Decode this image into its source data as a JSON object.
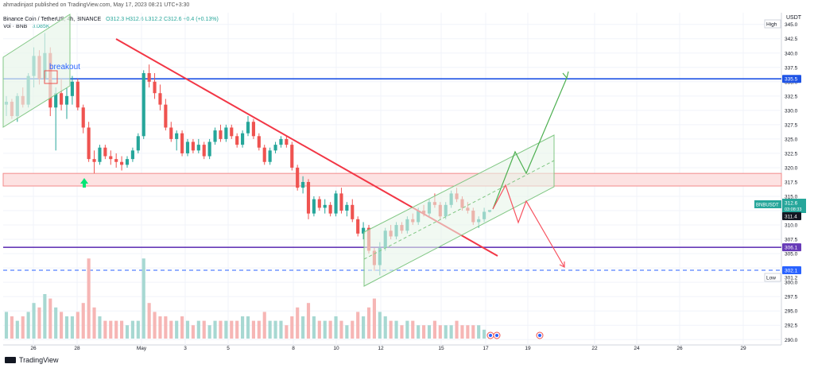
{
  "publisher_line": "ahmadinjast published on TradingView.com, May 17, 2023 08:21 UTC+3:30",
  "symbol_line": {
    "name": "Binance Coin / TetherUS, 4h, BINANCE",
    "ohlc": "O312.3  H312.6  L312.2  C312.6  +0.4 (+0.13%)"
  },
  "volume_line": {
    "label": "Vol · BNB",
    "value": "3.085K"
  },
  "footer_brand": "TradingView",
  "chart_data": {
    "type": "candlestick",
    "currency": "USDT",
    "ylim": [
      290.0,
      345.0
    ],
    "y_ticks": [
      "290.0",
      "292.5",
      "295.0",
      "297.5",
      "300.0",
      "302.5",
      "305.0",
      "307.5",
      "310.0",
      "312.5",
      "315.0",
      "317.5",
      "320.0",
      "322.5",
      "325.0",
      "327.5",
      "330.0",
      "332.5",
      "335.0",
      "337.5",
      "340.0",
      "342.5",
      "345.0"
    ],
    "x_ticks": [
      "26",
      "28",
      "May",
      "3",
      "5",
      "8",
      "10",
      "12",
      "15",
      "17",
      "19",
      "22",
      "24",
      "26",
      "29"
    ],
    "price_markers": [
      {
        "label": "High",
        "type": "tag"
      },
      {
        "label": "BNBUSDT",
        "value": "312.6",
        "sub": "03:08:33",
        "color": "#26a69a"
      },
      {
        "label": "",
        "value": "311.4",
        "color": "#131722"
      },
      {
        "label": "",
        "value": "335.5",
        "color": "#1e53e5"
      },
      {
        "label": "",
        "value": "306.1",
        "color": "#673ab7"
      },
      {
        "label": "",
        "value": "302.1",
        "color": "#2962ff"
      },
      {
        "label": "Low",
        "value": "301.2",
        "type": "tag"
      }
    ],
    "levels": [
      {
        "value": 335.5,
        "style": "solid",
        "color": "#1e53e5"
      },
      {
        "value": 306.1,
        "style": "solid",
        "color": "#673ab7"
      },
      {
        "value": 302.1,
        "style": "dashed",
        "color": "#2962ff"
      }
    ],
    "resistance_zone": {
      "from": 316.8,
      "to": 319.0,
      "color": "#f7a7a7"
    },
    "annotation": "breakout",
    "colors": {
      "up": "#26a69a",
      "down": "#ef5350",
      "trendline": "#f23645",
      "projection_up": "#4caf50",
      "projection_down": "#f7525f",
      "channel": "#4caf50"
    },
    "candles": [
      [
        331.0,
        332.5,
        329.0,
        331.5
      ],
      [
        331.5,
        332.0,
        328.5,
        329.0
      ],
      [
        329.0,
        333.0,
        328.0,
        332.5
      ],
      [
        332.5,
        334.0,
        330.5,
        331.0
      ],
      [
        331.0,
        336.5,
        330.5,
        336.0
      ],
      [
        336.0,
        341.0,
        334.0,
        339.5
      ],
      [
        339.5,
        340.5,
        334.5,
        335.5
      ],
      [
        335.5,
        343.5,
        335.0,
        340.0
      ],
      [
        340.0,
        341.0,
        329.0,
        330.5
      ],
      [
        330.5,
        334.0,
        323.0,
        333.0
      ],
      [
        333.0,
        335.5,
        330.0,
        331.0
      ],
      [
        331.0,
        334.0,
        328.5,
        332.5
      ],
      [
        332.5,
        336.0,
        331.0,
        335.0
      ],
      [
        335.0,
        335.5,
        330.0,
        330.5
      ],
      [
        330.5,
        331.0,
        326.0,
        327.0
      ],
      [
        327.0,
        328.0,
        321.0,
        321.5
      ],
      [
        321.5,
        323.0,
        319.0,
        321.0
      ],
      [
        321.0,
        324.0,
        320.5,
        323.5
      ],
      [
        323.5,
        324.0,
        321.5,
        322.0
      ],
      [
        322.0,
        323.0,
        320.5,
        321.5
      ],
      [
        321.5,
        322.5,
        320.0,
        321.0
      ],
      [
        321.0,
        322.0,
        319.5,
        320.5
      ],
      [
        320.5,
        322.0,
        320.0,
        321.5
      ],
      [
        321.5,
        323.5,
        321.0,
        323.0
      ],
      [
        323.0,
        326.0,
        322.5,
        325.5
      ],
      [
        325.5,
        337.0,
        325.0,
        336.5
      ],
      [
        336.5,
        338.0,
        334.0,
        335.0
      ],
      [
        335.0,
        336.5,
        332.0,
        333.0
      ],
      [
        333.0,
        334.5,
        330.0,
        331.0
      ],
      [
        331.0,
        332.0,
        326.5,
        327.0
      ],
      [
        327.0,
        328.0,
        324.5,
        325.0
      ],
      [
        325.0,
        326.5,
        323.0,
        326.0
      ],
      [
        326.0,
        326.5,
        322.0,
        322.5
      ],
      [
        322.5,
        325.0,
        322.0,
        324.5
      ],
      [
        324.5,
        325.0,
        322.5,
        323.0
      ],
      [
        323.0,
        325.0,
        322.5,
        324.0
      ],
      [
        324.0,
        324.5,
        321.5,
        322.0
      ],
      [
        322.0,
        325.0,
        321.5,
        324.5
      ],
      [
        324.5,
        327.0,
        324.0,
        326.5
      ],
      [
        326.5,
        327.5,
        324.5,
        325.0
      ],
      [
        325.0,
        327.5,
        324.5,
        327.0
      ],
      [
        327.0,
        327.5,
        325.0,
        325.5
      ],
      [
        325.5,
        326.0,
        323.5,
        324.0
      ],
      [
        324.0,
        326.5,
        323.5,
        326.0
      ],
      [
        326.0,
        329.0,
        325.5,
        328.0
      ],
      [
        328.0,
        328.5,
        325.0,
        325.5
      ],
      [
        325.5,
        326.0,
        323.0,
        323.5
      ],
      [
        323.5,
        324.0,
        320.5,
        321.0
      ],
      [
        321.0,
        323.5,
        320.5,
        323.0
      ],
      [
        323.0,
        324.5,
        322.5,
        324.0
      ],
      [
        324.0,
        325.5,
        323.5,
        325.0
      ],
      [
        325.0,
        325.5,
        323.5,
        324.0
      ],
      [
        324.0,
        324.5,
        319.5,
        320.0
      ],
      [
        320.0,
        320.5,
        316.0,
        316.5
      ],
      [
        316.5,
        318.5,
        315.5,
        317.5
      ],
      [
        317.5,
        318.0,
        311.0,
        312.0
      ],
      [
        312.0,
        315.0,
        311.5,
        314.5
      ],
      [
        314.5,
        315.0,
        312.5,
        313.0
      ],
      [
        313.0,
        314.5,
        312.0,
        313.5
      ],
      [
        313.5,
        314.0,
        311.5,
        312.0
      ],
      [
        312.0,
        316.0,
        311.5,
        315.5
      ],
      [
        315.5,
        316.5,
        312.0,
        312.5
      ],
      [
        312.5,
        314.0,
        311.5,
        313.5
      ],
      [
        313.5,
        314.5,
        310.5,
        311.0
      ],
      [
        311.0,
        311.5,
        308.0,
        308.5
      ],
      [
        308.5,
        310.5,
        307.5,
        309.5
      ],
      [
        309.5,
        310.0,
        305.0,
        305.5
      ],
      [
        305.5,
        306.0,
        302.0,
        303.0
      ],
      [
        303.0,
        307.0,
        301.2,
        306.0
      ],
      [
        306.0,
        309.5,
        305.5,
        309.0
      ],
      [
        309.0,
        310.0,
        307.5,
        308.0
      ],
      [
        308.0,
        310.5,
        307.5,
        310.0
      ],
      [
        310.0,
        310.5,
        308.5,
        309.0
      ],
      [
        309.0,
        311.5,
        308.5,
        311.0
      ],
      [
        311.0,
        312.0,
        310.0,
        310.5
      ],
      [
        310.5,
        313.0,
        310.0,
        312.5
      ],
      [
        312.5,
        313.5,
        311.5,
        312.0
      ],
      [
        312.0,
        314.5,
        311.5,
        314.0
      ],
      [
        314.0,
        315.5,
        313.0,
        313.5
      ],
      [
        313.5,
        314.0,
        311.0,
        311.5
      ],
      [
        311.5,
        314.0,
        311.0,
        313.5
      ],
      [
        313.5,
        316.0,
        313.0,
        315.5
      ],
      [
        315.5,
        316.5,
        314.0,
        314.5
      ],
      [
        314.5,
        315.0,
        312.5,
        313.0
      ],
      [
        313.0,
        314.0,
        312.0,
        312.5
      ],
      [
        312.5,
        313.0,
        310.0,
        310.5
      ],
      [
        310.5,
        311.5,
        309.5,
        311.0
      ],
      [
        311.0,
        313.0,
        310.5,
        312.3
      ],
      [
        312.3,
        312.6,
        312.2,
        312.6
      ]
    ],
    "volume": [
      6,
      5,
      4,
      5,
      6,
      8,
      7,
      10,
      9,
      7,
      6,
      5,
      5,
      6,
      8,
      18,
      7,
      5,
      4,
      4,
      4,
      4,
      3,
      4,
      4,
      18,
      8,
      6,
      5,
      5,
      4,
      4,
      5,
      4,
      3,
      4,
      4,
      3,
      4,
      4,
      4,
      4,
      4,
      5,
      5,
      4,
      4,
      6,
      4,
      4,
      4,
      3,
      5,
      7,
      5,
      8,
      5,
      4,
      4,
      4,
      5,
      4,
      3,
      4,
      6,
      5,
      7,
      9,
      6,
      5,
      4,
      4,
      3,
      4,
      4,
      3,
      3,
      3,
      4,
      3,
      3,
      3,
      4,
      3,
      3,
      3,
      3,
      2,
      1
    ]
  }
}
